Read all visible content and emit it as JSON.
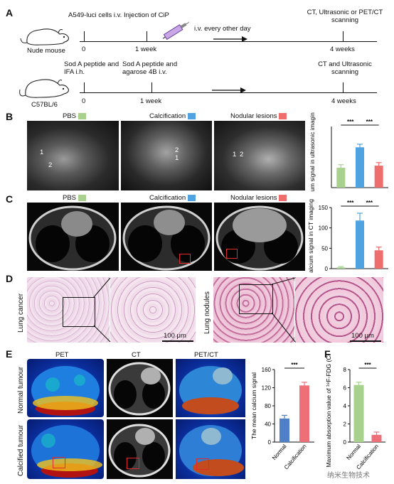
{
  "figure": {
    "panels": {
      "A": "A",
      "B": "B",
      "C": "C",
      "D": "D",
      "E": "E",
      "F": "F"
    },
    "timeline": {
      "row1": {
        "animal": "Nude mouse",
        "step0": "A549-luci cells i.v.",
        "step1": "Injection of CiP",
        "step2": "i.v. every other day",
        "step3": "CT, Ultrasonic or PET/CT  scanning",
        "t0": "0",
        "t1": "1 week",
        "t2": "4 weeks"
      },
      "row2": {
        "animal": "C57BL/6",
        "step0": "Sod A peptide and IFA i.h.",
        "step1": "Sod A peptide and agarose 4B i.v.",
        "step3": "CT and Ultrasonic scanning",
        "t0": "0",
        "t1": "1 week",
        "t2": "4 weeks"
      }
    },
    "panelB": {
      "labels": [
        "PBS",
        "Calcification",
        "Nodular lesions"
      ],
      "marks": [
        "1",
        "2",
        "2",
        "1",
        "1",
        "2"
      ]
    },
    "panelC": {
      "labels": [
        "PBS",
        "Calcification",
        "Nodular lesions"
      ]
    },
    "panelD": {
      "left_label": "Lung cancer",
      "right_label": "Lung nodules",
      "scalebar": "100 μm"
    },
    "panelE": {
      "headers": [
        "PET",
        "CT",
        "PET/CT"
      ],
      "rows": [
        "Normal tumour",
        "Calcified  tumour"
      ]
    },
    "colors": {
      "pbs": "#a9d18e",
      "calcification": "#4ea3e0",
      "nodular": "#ee6e6e",
      "normal": "#4f7fc6",
      "calcified": "#ef6f78"
    },
    "watermark": "纳米生物技术"
  },
  "chart_data": [
    {
      "type": "bar",
      "id": "B",
      "ylabel": "Calcium signal in ultrasonic imaging",
      "categories": [
        "PBS",
        "Calcification",
        "Nodular lesions"
      ],
      "values": [
        65,
        132,
        72
      ],
      "errors": [
        10,
        10,
        10
      ],
      "ylim": [
        0,
        200
      ],
      "yticks": [],
      "significance": [
        "***",
        "***"
      ]
    },
    {
      "type": "bar",
      "id": "C",
      "ylabel": "Calcium signal in CT imaging",
      "categories": [
        "PBS",
        "Calcification",
        "Nodular lesions"
      ],
      "values": [
        3,
        118,
        45
      ],
      "errors": [
        2,
        18,
        8
      ],
      "ylim": [
        0,
        150
      ],
      "yticks": [
        "0",
        "50",
        "100",
        "150"
      ],
      "significance": [
        "***",
        "***"
      ]
    },
    {
      "type": "bar",
      "id": "E",
      "ylabel": "The mean calcium signal",
      "categories": [
        "Normal",
        "Calcification"
      ],
      "values": [
        52,
        125
      ],
      "errors": [
        7,
        7
      ],
      "ylim": [
        0,
        160
      ],
      "yticks": [
        "0",
        "40",
        "80",
        "120",
        "160"
      ],
      "significance": [
        "***"
      ]
    },
    {
      "type": "bar",
      "id": "F",
      "ylabel": "Maximum absorption value of ¹⁸F-FDG (Ci/kg)",
      "categories": [
        "Normal",
        "Calcification"
      ],
      "values": [
        6.3,
        0.8
      ],
      "errors": [
        0.3,
        0.3
      ],
      "ylim": [
        0,
        8
      ],
      "yticks": [
        "0",
        "2",
        "4",
        "6",
        "8"
      ],
      "significance": [
        "***"
      ]
    }
  ]
}
